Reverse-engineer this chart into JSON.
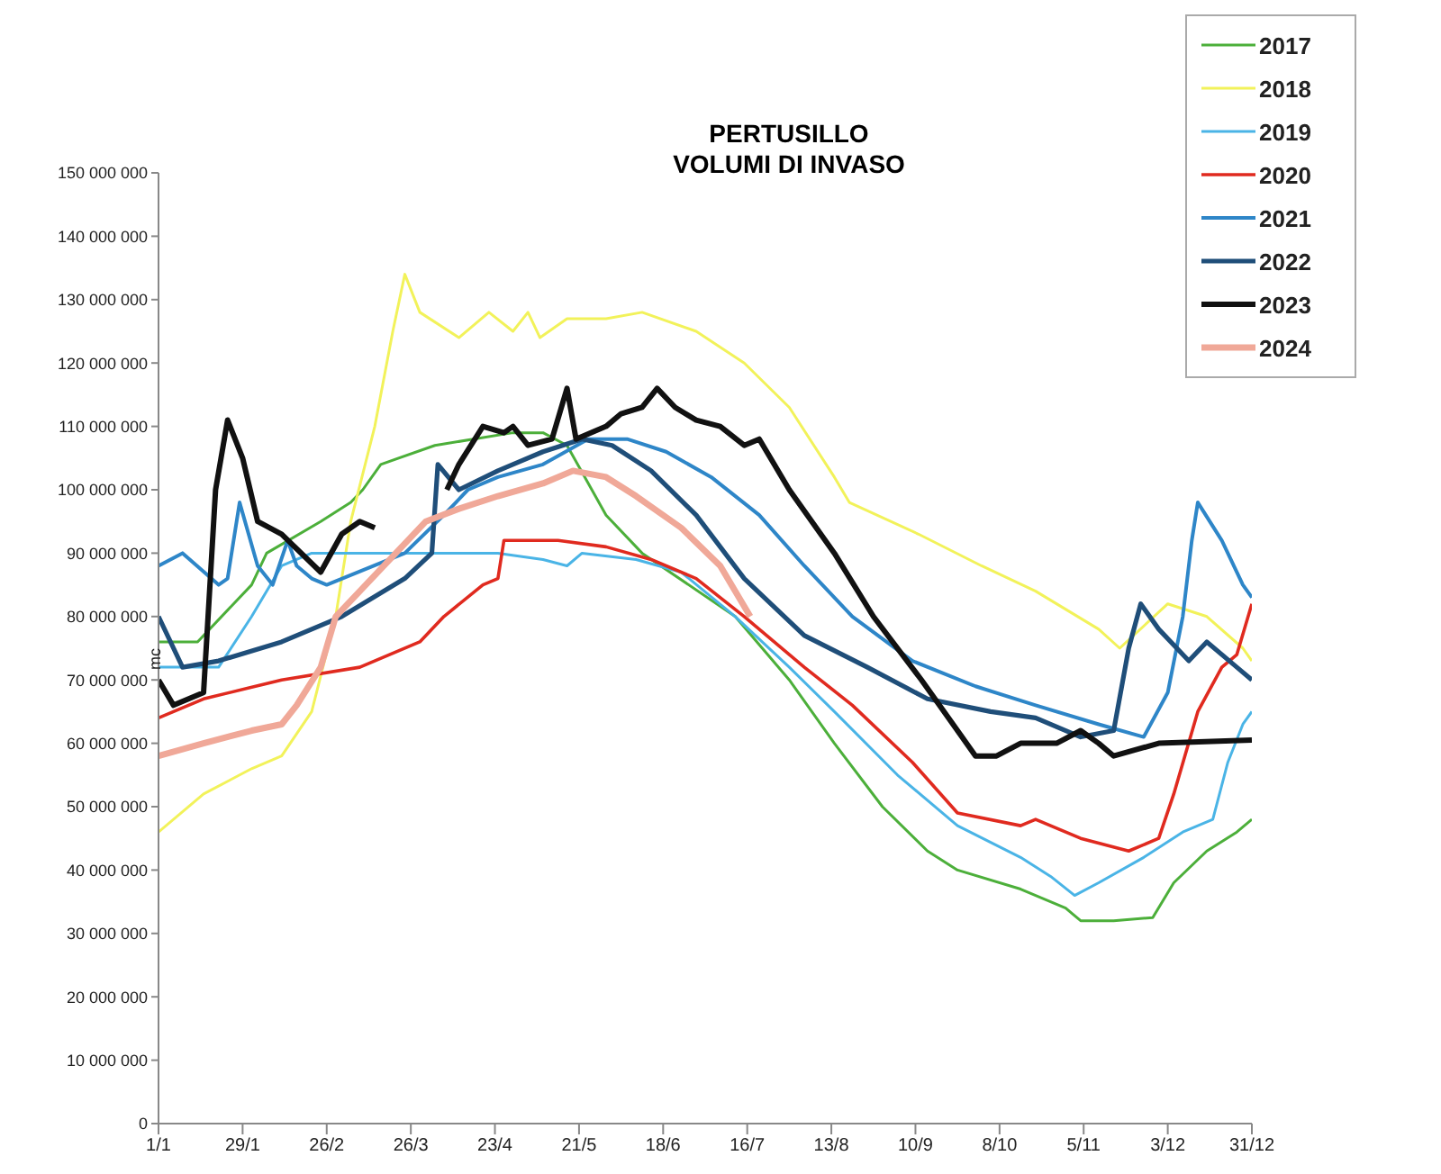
{
  "chart_data": {
    "type": "line",
    "title": "PERTUSILLO\nVOLUMI DI INVASO",
    "ylabel": "mc",
    "legend": "top right",
    "grid": false,
    "marker": "none",
    "line_style": "solid",
    "xlim": [
      "--01-01",
      "--12-31"
    ],
    "xticks": [
      {
        "value": "--01-01",
        "label": "1/1"
      },
      {
        "value": "--01-29",
        "label": "29/1"
      },
      {
        "value": "--02-26",
        "label": "26/2"
      },
      {
        "value": "--03-26",
        "label": "26/3"
      },
      {
        "value": "--04-23",
        "label": "23/4"
      },
      {
        "value": "--05-21",
        "label": "21/5"
      },
      {
        "value": "--06-18",
        "label": "18/6"
      },
      {
        "value": "--07-16",
        "label": "16/7"
      },
      {
        "value": "--08-13",
        "label": "13/8"
      },
      {
        "value": "--09-10",
        "label": "10/9"
      },
      {
        "value": "--10-08",
        "label": "8/10"
      },
      {
        "value": "--11-05",
        "label": "5/11"
      },
      {
        "value": "--12-03",
        "label": "3/12"
      },
      {
        "value": "--12-31",
        "label": "31/12"
      }
    ],
    "ylim": [
      0,
      150000000
    ],
    "yticks": [
      0,
      {
        "value": 10000000,
        "label": "10 000 000"
      },
      {
        "value": 20000000,
        "label": "20 000 000"
      },
      {
        "value": 30000000,
        "label": "30 000 000"
      },
      {
        "value": 40000000,
        "label": "40 000 000"
      },
      {
        "value": 50000000,
        "label": "50 000 000"
      },
      {
        "value": 60000000,
        "label": "60 000 000"
      },
      {
        "value": 70000000,
        "label": "70 000 000"
      },
      {
        "value": 80000000,
        "label": "80 000 000"
      },
      {
        "value": 90000000,
        "label": "90 000 000"
      },
      {
        "value": 100000000,
        "label": "100 000 000"
      },
      {
        "value": 110000000,
        "label": "110 000 000"
      },
      {
        "value": 120000000,
        "label": "120 000 000"
      },
      {
        "value": 130000000,
        "label": "130 000 000"
      },
      {
        "value": 140000000,
        "label": "140 000 000"
      },
      {
        "value": 150000000,
        "label": "150 000 000"
      }
    ],
    "series": [
      {
        "name": "2017",
        "color": "#4caf3a",
        "x": [
          "--01-01",
          "--01-14",
          "--02-01",
          "--02-06",
          "--02-24",
          "--03-06",
          "--03-10",
          "--03-16",
          "--04-03",
          "--04-29",
          "--05-09",
          "--05-17",
          "--05-30",
          "--06-11",
          "--07-12",
          "--07-30",
          "--08-14",
          "--08-30",
          "--09-14",
          "--09-24",
          "--10-15",
          "--10-30",
          "--11-04",
          "--11-15",
          "--11-28",
          "--12-05",
          "--12-16",
          "--12-26",
          "--12-31"
        ],
        "values": [
          76000000,
          76000000,
          85000000,
          90000000,
          95000000,
          98000000,
          100000000,
          104000000,
          107000000,
          109000000,
          109000000,
          107000000,
          96000000,
          90000000,
          80000000,
          70000000,
          60000000,
          50000000,
          43000000,
          40000000,
          37000000,
          34000000,
          32000000,
          32000000,
          32500000,
          38000000,
          43000000,
          46000000,
          48000000
        ]
      },
      {
        "name": "2018",
        "color": "#f2f25a",
        "x": [
          "--01-01",
          "--01-16",
          "--02-01",
          "--02-11",
          "--02-21",
          "--03-01",
          "--03-06",
          "--03-14",
          "--03-20",
          "--03-24",
          "--03-29",
          "--04-11",
          "--04-21",
          "--04-29",
          "--05-04",
          "--05-08",
          "--05-17",
          "--05-30",
          "--06-11",
          "--06-29",
          "--07-15",
          "--07-30",
          "--08-14",
          "--08-19",
          "--09-11",
          "--10-02",
          "--10-20",
          "--11-10",
          "--11-17",
          "--12-03",
          "--12-16",
          "--12-28",
          "--12-31"
        ],
        "values": [
          46000000,
          52000000,
          56000000,
          58000000,
          65000000,
          80000000,
          95000000,
          110000000,
          125000000,
          134000000,
          128000000,
          124000000,
          128000000,
          125000000,
          128000000,
          124000000,
          127000000,
          127000000,
          128000000,
          125000000,
          120000000,
          113000000,
          102000000,
          98000000,
          93000000,
          88000000,
          84000000,
          78000000,
          75000000,
          82000000,
          80000000,
          75000000,
          73000000
        ]
      },
      {
        "name": "2019",
        "color": "#4ab4e6",
        "x": [
          "--01-01",
          "--01-21",
          "--02-01",
          "--02-11",
          "--02-21",
          "--03-29",
          "--04-24",
          "--05-09",
          "--05-17",
          "--05-22",
          "--06-09",
          "--06-24",
          "--07-12",
          "--07-30",
          "--08-14",
          "--09-04",
          "--09-24",
          "--10-15",
          "--10-25",
          "--11-02",
          "--11-10",
          "--11-25",
          "--12-08",
          "--12-18",
          "--12-23",
          "--12-28",
          "--12-31"
        ],
        "values": [
          72000000,
          72000000,
          80000000,
          88000000,
          90000000,
          90000000,
          90000000,
          89000000,
          88000000,
          90000000,
          89000000,
          87000000,
          80000000,
          72000000,
          65000000,
          55000000,
          47000000,
          42000000,
          39000000,
          36000000,
          38000000,
          42000000,
          46000000,
          48000000,
          57000000,
          63000000,
          65000000
        ]
      },
      {
        "name": "2020",
        "color": "#e02a1f",
        "x": [
          "--01-01",
          "--01-16",
          "--02-11",
          "--03-09",
          "--03-29",
          "--04-06",
          "--04-19",
          "--04-24",
          "--04-26",
          "--05-14",
          "--05-30",
          "--06-14",
          "--06-29",
          "--07-15",
          "--08-04",
          "--08-20",
          "--09-09",
          "--09-24",
          "--10-15",
          "--10-20",
          "--11-04",
          "--11-20",
          "--11-30",
          "--12-05",
          "--12-13",
          "--12-21",
          "--12-26",
          "--12-31"
        ],
        "values": [
          64000000,
          67000000,
          70000000,
          72000000,
          76000000,
          80000000,
          85000000,
          86000000,
          92000000,
          92000000,
          91000000,
          89000000,
          86000000,
          80000000,
          72000000,
          66000000,
          57000000,
          49000000,
          47000000,
          48000000,
          45000000,
          43000000,
          45000000,
          52000000,
          65000000,
          72000000,
          74000000,
          82000000
        ]
      },
      {
        "name": "2021",
        "color": "#2e86c8",
        "x": [
          "--01-01",
          "--01-09",
          "--01-21",
          "--01-24",
          "--01-28",
          "--02-03",
          "--02-08",
          "--02-13",
          "--02-16",
          "--02-21",
          "--02-26",
          "--03-24",
          "--04-06",
          "--04-14",
          "--04-24",
          "--05-09",
          "--05-24",
          "--06-06",
          "--06-19",
          "--07-04",
          "--07-20",
          "--08-04",
          "--08-20",
          "--09-09",
          "--09-30",
          "--10-20",
          "--11-10",
          "--11-25",
          "--12-03",
          "--12-08",
          "--12-11",
          "--12-13",
          "--12-21",
          "--12-28",
          "--12-31"
        ],
        "values": [
          88000000,
          90000000,
          85000000,
          86000000,
          98000000,
          88000000,
          85000000,
          92000000,
          88000000,
          86000000,
          85000000,
          90000000,
          96000000,
          100000000,
          102000000,
          104000000,
          108000000,
          108000000,
          106000000,
          102000000,
          96000000,
          88000000,
          80000000,
          73000000,
          69000000,
          66000000,
          63000000,
          61000000,
          68000000,
          80000000,
          92000000,
          98000000,
          92000000,
          85000000,
          83000000
        ]
      },
      {
        "name": "2022",
        "color": "#1f4e79",
        "x": [
          "--01-01",
          "--01-09",
          "--01-21",
          "--02-11",
          "--03-03",
          "--03-24",
          "--04-02",
          "--04-04",
          "--04-11",
          "--04-24",
          "--05-09",
          "--05-22",
          "--06-01",
          "--06-14",
          "--06-29",
          "--07-15",
          "--08-04",
          "--08-25",
          "--09-14",
          "--10-05",
          "--10-20",
          "--11-04",
          "--11-15",
          "--11-20",
          "--11-24",
          "--11-30",
          "--12-10",
          "--12-16",
          "--12-26",
          "--12-31"
        ],
        "values": [
          80000000,
          72000000,
          73000000,
          76000000,
          80000000,
          86000000,
          90000000,
          104000000,
          100000000,
          103000000,
          106000000,
          108000000,
          107000000,
          103000000,
          96000000,
          86000000,
          77000000,
          72000000,
          67000000,
          65000000,
          64000000,
          61000000,
          62000000,
          75000000,
          82000000,
          78000000,
          73000000,
          76000000,
          72000000,
          70000000
        ]
      },
      {
        "name": "2023",
        "color": "#111111",
        "x": [
          "--01-01",
          "--01-06",
          "--01-16",
          "--01-20",
          "--01-24",
          "--01-29",
          "--02-03",
          "--02-11",
          "--02-24",
          "--03-03",
          "--03-09",
          "--03-14",
          "--03-26",
          "--04-07",
          "--04-11",
          "--04-19",
          "--04-26",
          "--04-29",
          "--05-04",
          "--05-12",
          "--05-17",
          "--05-20",
          "--05-30",
          "--06-04",
          "--06-11",
          "--06-16",
          "--06-22",
          "--06-29",
          "--07-07",
          "--07-15",
          "--07-20",
          "--07-30",
          "--08-14",
          "--08-27",
          "--09-12",
          "--09-24",
          "--09-30",
          "--10-07",
          "--10-15",
          "--10-27",
          "--11-04",
          "--11-10",
          "--11-15",
          "--11-30",
          "--12-31"
        ],
        "values": [
          70000000,
          66000000,
          68000000,
          100000000,
          111000000,
          105000000,
          95000000,
          93000000,
          87000000,
          93000000,
          95000000,
          94000000,
          null,
          100000000,
          104000000,
          110000000,
          109000000,
          110000000,
          107000000,
          108000000,
          116000000,
          108000000,
          110000000,
          112000000,
          113000000,
          116000000,
          113000000,
          111000000,
          110000000,
          107000000,
          108000000,
          100000000,
          90000000,
          80000000,
          70000000,
          62000000,
          58000000,
          58000000,
          60000000,
          60000000,
          62000000,
          60000000,
          58000000,
          60000000,
          60500000
        ]
      },
      {
        "name": "2024",
        "color": "#f0a898",
        "x": [
          "--01-01",
          "--01-16",
          "--02-01",
          "--02-11",
          "--02-16",
          "--02-24",
          "--03-01",
          "--03-11",
          "--03-21",
          "--03-31",
          "--04-11",
          "--04-24",
          "--05-09",
          "--05-19",
          "--05-30",
          "--06-09",
          "--06-24",
          "--07-07",
          "--07-17"
        ],
        "values": [
          58000000,
          60000000,
          62000000,
          63000000,
          66000000,
          72000000,
          80000000,
          85000000,
          90000000,
          95000000,
          97000000,
          99000000,
          101000000,
          103000000,
          102000000,
          99000000,
          94000000,
          88000000,
          80000000
        ]
      }
    ]
  }
}
